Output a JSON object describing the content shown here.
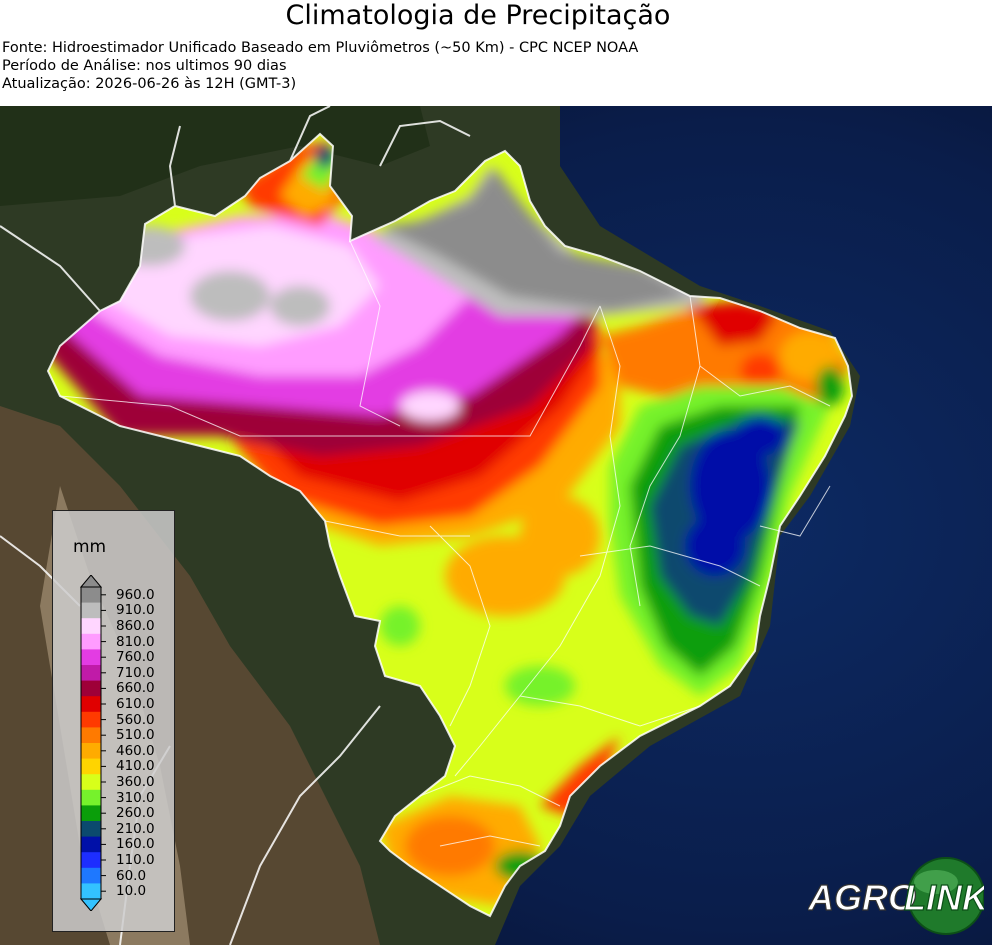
{
  "header": {
    "title": "Climatologia de Precipitação",
    "source": "Fonte: Hidroestimador Unificado Baseado em Pluviômetros (~50 Km) - CPC NCEP NOAA",
    "period": "Período de Análise: nos ultimos 90 dias",
    "update": "Atualização: 2026-06-26 às 12H (GMT-3)"
  },
  "legend": {
    "unit": "mm",
    "ticks": [
      "960.0",
      "910.0",
      "860.0",
      "810.0",
      "760.0",
      "710.0",
      "660.0",
      "610.0",
      "560.0",
      "510.0",
      "460.0",
      "410.0",
      "360.0",
      "310.0",
      "260.0",
      "210.0",
      "160.0",
      "110.0",
      "60.0",
      "10.0"
    ],
    "colors": [
      "#8c8c8c",
      "#bdbdbd",
      "#ffd6ff",
      "#ff9cff",
      "#e33ce3",
      "#c01ba8",
      "#9e0038",
      "#e00000",
      "#ff3a00",
      "#ff7a00",
      "#ffab00",
      "#ffd400",
      "#d8ff1a",
      "#76f22c",
      "#0a9e0a",
      "#0b4a6e",
      "#0010a8",
      "#1d2eff",
      "#1e78ff",
      "#33c2ff"
    ]
  },
  "logo": {
    "part1": "AGRO",
    "part2": "LINK"
  },
  "map": {
    "subject": "Brazil 90-day precipitation field over satellite basemap"
  }
}
